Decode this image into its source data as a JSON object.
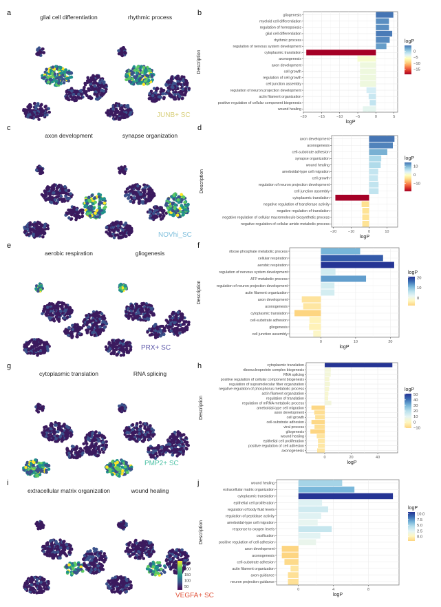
{
  "figure": {
    "rows": [
      {
        "umap_letter": "a",
        "bar_letter": "b",
        "umap_titles": [
          "glial cell differentiation",
          "rhythmic process"
        ],
        "subtype": "JUNB+ SC",
        "subtype_color": "#d8cf7a",
        "umap_highlight": [
          "topleft-cluster",
          "topleft-cluster"
        ]
      },
      {
        "umap_letter": "c",
        "bar_letter": "d",
        "umap_titles": [
          "axon development",
          "synapse organization"
        ],
        "subtype": "NOVhi_SC",
        "subtype_color": "#7fbfdc",
        "umap_highlight": [
          "right-cluster",
          "right-cluster"
        ]
      },
      {
        "umap_letter": "e",
        "bar_letter": "f",
        "umap_titles": [
          "aerobic respiration",
          "gliogenesis"
        ],
        "subtype": "PRX+ SC",
        "subtype_color": "#5a55a8",
        "umap_highlight": [
          "small-cluster",
          "small-cluster"
        ]
      },
      {
        "umap_letter": "g",
        "bar_letter": "h",
        "umap_titles": [
          "cytoplasmic translation",
          "RNA splicing"
        ],
        "subtype": "PMP2+ SC",
        "subtype_color": "#4fc2a6",
        "umap_highlight": [
          "bottom-cluster",
          "bottom-cluster"
        ]
      },
      {
        "umap_letter": "i",
        "bar_letter": "j",
        "umap_titles": [
          "extracellular matrix organization",
          "wound healing"
        ],
        "subtype": "VEGFA+ SC",
        "subtype_color": "#e0533a",
        "umap_highlight": [
          "middle-cluster",
          "middle-cluster"
        ]
      }
    ],
    "umap_colorbar": {
      "ticks": [
        "250",
        "200",
        "150",
        "100",
        "50"
      ],
      "colors": [
        "#fde725",
        "#5ec962",
        "#21918c",
        "#3b528b",
        "#440154"
      ]
    }
  },
  "chart_data": [
    {
      "type": "bar",
      "orientation": "horizontal",
      "panel": "b",
      "xlabel": "logP",
      "ylabel": "Description",
      "xlim": [
        -20,
        6
      ],
      "xticks": [
        -20,
        -15,
        -10,
        -5,
        0,
        5
      ],
      "categories": [
        "gliogenesis",
        "myeloid cell differentiation",
        "regulation of hemopoiesis",
        "glial cell differentiation",
        "rhythmic process",
        "regulation of nervous system development",
        "cytoplasmic translation",
        "axonogenesis",
        "axon development",
        "cell growth",
        "regulation of cell growth",
        "cell junction assembly",
        "regulation of neuron projection development",
        "actin filament organization",
        "positive regulation of cellular component biogenesis",
        "wound healing"
      ],
      "values": [
        4.8,
        3.6,
        3.6,
        4.5,
        3.8,
        2.9,
        -19.2,
        -5.1,
        -4.4,
        -4.4,
        -4.4,
        -4.4,
        -2.6,
        -2.0,
        -1.7,
        -3.6
      ],
      "legend": {
        "title": "logP",
        "ticks": [
          0,
          -5,
          -10,
          -15
        ],
        "range": [
          -19.2,
          4.8
        ],
        "palette": "RdYlBu",
        "placement": "right"
      }
    },
    {
      "type": "bar",
      "orientation": "horizontal",
      "panel": "d",
      "xlabel": "logP",
      "ylabel": "Description",
      "xlim": [
        -21,
        16
      ],
      "xticks": [
        -20,
        -10,
        0,
        10
      ],
      "categories": [
        "axon development",
        "axonogenesis",
        "cell-substrate adhesion",
        "synapse organization",
        "wound healing",
        "ameboidal-type cell migration",
        "cell growth",
        "regulation of neuron projection development",
        "cell junction assembly",
        "cytoplasmic translation",
        "negative regulation of transferase activity",
        "negative regulation of translation",
        "negative regulation of cellular macromolecule biosynthetic process",
        "negative regulation of cellular amide metabolic process"
      ],
      "values": [
        14.2,
        13.3,
        10.2,
        6.8,
        6.5,
        5.1,
        4.9,
        5.3,
        5.3,
        -18.9,
        -4.2,
        -3.8,
        -3.8,
        -3.8
      ],
      "legend": {
        "title": "logP",
        "ticks": [
          10,
          0,
          -10
        ],
        "range": [
          -18.9,
          14.2
        ],
        "palette": "RdYlBu",
        "placement": "right"
      }
    },
    {
      "type": "bar",
      "orientation": "horizontal",
      "panel": "f",
      "xlabel": "logP",
      "ylabel": "Description",
      "xlim": [
        -9,
        22.5
      ],
      "xticks": [
        0,
        10,
        20
      ],
      "categories": [
        "ribose phosphate metabolic process",
        "cellular respiration",
        "aerobic respiration",
        "regulation of nervous system development",
        "ATP metabolic process",
        "regulation of neuron projection development",
        "actin filament organization",
        "axon development",
        "axonogenesis",
        "cytoplasmic translation",
        "cell-substrate adhesion",
        "gliogenesis",
        "cell junction assembly"
      ],
      "values": [
        11.3,
        17.9,
        21.1,
        4.2,
        13.0,
        3.9,
        3.9,
        -5.5,
        -5.1,
        -7.6,
        -3.3,
        -3.4,
        -2.2
      ],
      "legend": {
        "title": "logP",
        "ticks": [
          20,
          10,
          0
        ],
        "range": [
          -7.6,
          21.1
        ],
        "palette": "YlBu",
        "placement": "right"
      }
    },
    {
      "type": "bar",
      "orientation": "horizontal",
      "panel": "h",
      "xlabel": "logP",
      "ylabel": "Description",
      "xlim": [
        -14,
        55
      ],
      "xticks": [
        0,
        20,
        40
      ],
      "categories": [
        "cytoplasmic translation",
        "ribonucleoprotein complex biogenesis",
        "RNA splicing",
        "positive regulation of cellular component biogenesis",
        "regulation of supramolecular fiber organization",
        "negative regulation of phosphorus metabolic process",
        "actin filament organization",
        "regulation of translation",
        "regulation of mRNA metabolic process",
        "ameboidal-type cell migration",
        "axon development",
        "cell growth",
        "cell-substrate adhesion",
        "viral process",
        "gliogenesis",
        "wound healing",
        "epithelial cell proliferation",
        "positive regulation of cell adhesion",
        "axonogenesis"
      ],
      "values": [
        51.0,
        4.6,
        4.5,
        3.5,
        3.9,
        3.3,
        2.8,
        2.6,
        5.0,
        -10.0,
        -7.9,
        -7.2,
        -10.0,
        -7.7,
        -10.8,
        -6.0,
        -5.1,
        -5.1,
        -5.7
      ],
      "legend": {
        "title": "logP",
        "ticks": [
          50,
          40,
          30,
          20,
          10,
          0,
          -10
        ],
        "range": [
          -10.8,
          51.0
        ],
        "palette": "YlBu",
        "placement": "right"
      }
    },
    {
      "type": "bar",
      "orientation": "horizontal",
      "panel": "j",
      "xlabel": "logP",
      "ylabel": "Description",
      "xlim": [
        -2.5,
        11.5
      ],
      "xticks": [
        0,
        4,
        8
      ],
      "categories": [
        "wound healing",
        "extracellular matrix organization",
        "cytoplasmic translation",
        "epithelial cell proliferation",
        "regulation of body fluid levels",
        "regulation of peptidase activity",
        "ameboidal-type cell migration",
        "response to oxygen levels",
        "ossification",
        "positive regulation of cell adhesion",
        "axon development",
        "axonogenesis",
        "cell-substrate adhesion",
        "actin filament organization",
        "axon guidance",
        "neuron projection guidance"
      ],
      "values": [
        5.0,
        6.4,
        10.8,
        2.7,
        3.4,
        2.6,
        2.2,
        3.8,
        2.5,
        2.0,
        -1.9,
        -1.9,
        -1.6,
        -0.9,
        -1.2,
        -1.2
      ],
      "legend": {
        "title": "logP",
        "ticks": [
          10.0,
          7.5,
          5.0,
          2.5,
          0.0
        ],
        "range": [
          -1.9,
          10.8
        ],
        "palette": "YlBu",
        "placement": "right"
      }
    }
  ]
}
